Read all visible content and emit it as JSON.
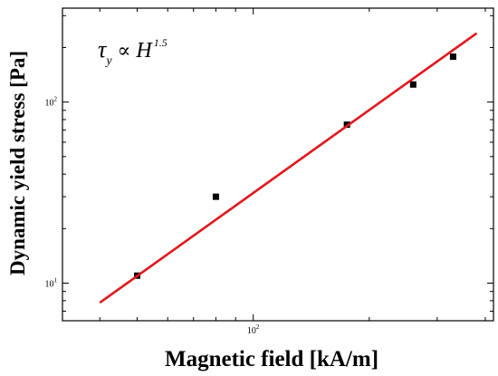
{
  "chart_data": {
    "type": "scatter",
    "title": "",
    "xlabel": "Magnetic field [kA/m]",
    "ylabel": "Dynamic yield stress [Pa]",
    "x_scale": "log",
    "y_scale": "log",
    "xlim": [
      32,
      420
    ],
    "ylim": [
      6.2,
      330
    ],
    "x_ticks": [
      {
        "value": 100,
        "base": "10",
        "exp": "2"
      }
    ],
    "y_ticks": [
      {
        "value": 10,
        "base": "10",
        "exp": "1"
      },
      {
        "value": 100,
        "base": "10",
        "exp": "2"
      }
    ],
    "annotation": {
      "symbol": "τ",
      "subscript": "y",
      "relation": "∝",
      "variable": "H",
      "exponent": "1.5"
    },
    "series": [
      {
        "kind": "points",
        "color": "#000000",
        "points": [
          {
            "x": 50,
            "y": 11
          },
          {
            "x": 80,
            "y": 30
          },
          {
            "x": 175,
            "y": 75
          },
          {
            "x": 260,
            "y": 125
          },
          {
            "x": 330,
            "y": 178
          }
        ]
      },
      {
        "kind": "fit-line",
        "color": "#e0191e",
        "points": [
          {
            "x": 40,
            "y": 7.8
          },
          {
            "x": 380,
            "y": 240
          }
        ]
      }
    ]
  }
}
